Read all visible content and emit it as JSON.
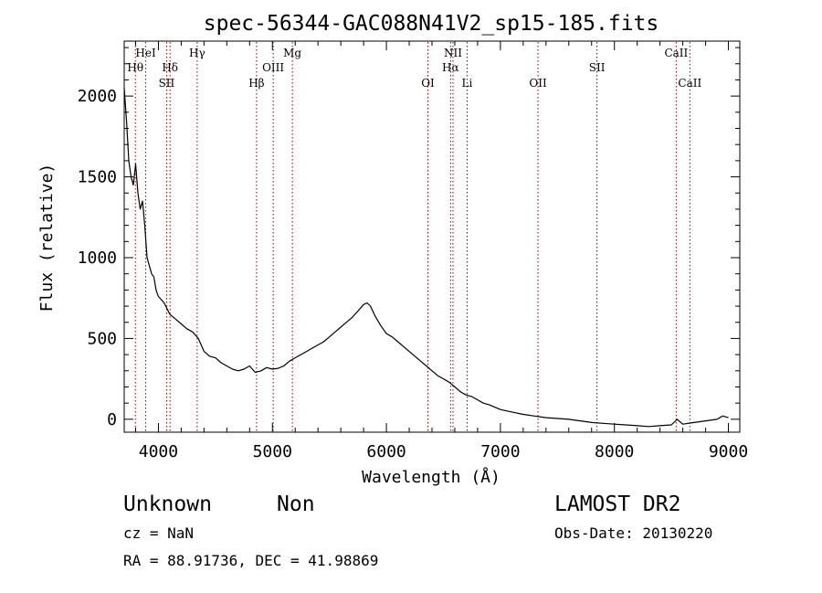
{
  "chart_data": {
    "type": "line",
    "title": "spec-56344-GAC088N41V2_sp15-185.fits",
    "xlabel": "Wavelength (Å)",
    "ylabel": "Flux (relative)",
    "xlim": [
      3700,
      9100
    ],
    "ylim": [
      -80,
      2340
    ],
    "x_ticks": [
      4000,
      5000,
      6000,
      7000,
      8000,
      9000
    ],
    "y_ticks": [
      0,
      500,
      1000,
      1500,
      2000
    ],
    "x_tick_labels": [
      "4000",
      "5000",
      "6000",
      "7000",
      "8000",
      "9000"
    ],
    "y_tick_labels": [
      "0",
      "500",
      "1000",
      "1500",
      "2000"
    ],
    "grid": false,
    "line_color": "#000000",
    "marker_color": "#8b0000",
    "series": [
      {
        "x": [
          3700,
          3720,
          3740,
          3760,
          3780,
          3800,
          3820,
          3840,
          3860,
          3880,
          3900,
          3920,
          3940,
          3960,
          3980,
          4000,
          4050,
          4100,
          4150,
          4200,
          4250,
          4300,
          4350,
          4400,
          4450,
          4500,
          4550,
          4600,
          4650,
          4700,
          4750,
          4800,
          4850,
          4900,
          4950,
          5000,
          5050,
          5100,
          5150,
          5200,
          5250,
          5300,
          5350,
          5400,
          5450,
          5500,
          5550,
          5600,
          5650,
          5700,
          5750,
          5800,
          5830,
          5860,
          5900,
          5950,
          6000,
          6050,
          6100,
          6150,
          6200,
          6250,
          6300,
          6350,
          6400,
          6450,
          6500,
          6550,
          6600,
          6650,
          6700,
          6750,
          6800,
          6850,
          6900,
          6950,
          7000,
          7100,
          7200,
          7300,
          7400,
          7500,
          7600,
          7700,
          7800,
          7900,
          8000,
          8100,
          8200,
          8300,
          8400,
          8500,
          8550,
          8600,
          8700,
          8800,
          8900,
          8950,
          9000
        ],
        "y": [
          2050,
          1850,
          1600,
          1500,
          1450,
          1580,
          1400,
          1300,
          1350,
          1200,
          1000,
          950,
          900,
          880,
          800,
          760,
          720,
          650,
          620,
          590,
          560,
          540,
          500,
          420,
          390,
          380,
          350,
          330,
          310,
          300,
          310,
          330,
          290,
          300,
          320,
          310,
          315,
          330,
          360,
          380,
          400,
          420,
          440,
          460,
          480,
          510,
          540,
          570,
          600,
          630,
          670,
          710,
          720,
          700,
          640,
          580,
          530,
          510,
          480,
          450,
          420,
          390,
          360,
          330,
          300,
          270,
          250,
          230,
          200,
          170,
          150,
          140,
          120,
          100,
          90,
          75,
          60,
          45,
          30,
          20,
          10,
          5,
          0,
          -10,
          -20,
          -25,
          -30,
          -35,
          -40,
          -45,
          -40,
          -35,
          0,
          -30,
          -20,
          -10,
          0,
          20,
          10
        ]
      }
    ],
    "lines": [
      {
        "name": "Hθ",
        "x": 3798
      },
      {
        "name": "HeI",
        "x": 3889
      },
      {
        "name": "Hδ",
        "x": 4102
      },
      {
        "name": "SII",
        "x": 4072
      },
      {
        "name": "Hγ",
        "x": 4340
      },
      {
        "name": "Hβ",
        "x": 4861
      },
      {
        "name": "OIII",
        "x": 5007
      },
      {
        "name": "Mg",
        "x": 5175
      },
      {
        "name": "OI",
        "x": 6364
      },
      {
        "name": "NII",
        "x": 6584
      },
      {
        "name": "Hα",
        "x": 6563
      },
      {
        "name": "Li",
        "x": 6708
      },
      {
        "name": "OII",
        "x": 7330
      },
      {
        "name": "SII",
        "x": 7847
      },
      {
        "name": "CaII",
        "x": 8542
      },
      {
        "name": "CaII",
        "x": 8662
      }
    ]
  },
  "footer": {
    "object_class": "Unknown",
    "object_subclass": "Non",
    "cz": "cz = NaN",
    "coords": "RA =  88.91736, DEC =  41.98869",
    "survey": "LAMOST DR2",
    "obs_date": "Obs-Date: 20130220"
  }
}
